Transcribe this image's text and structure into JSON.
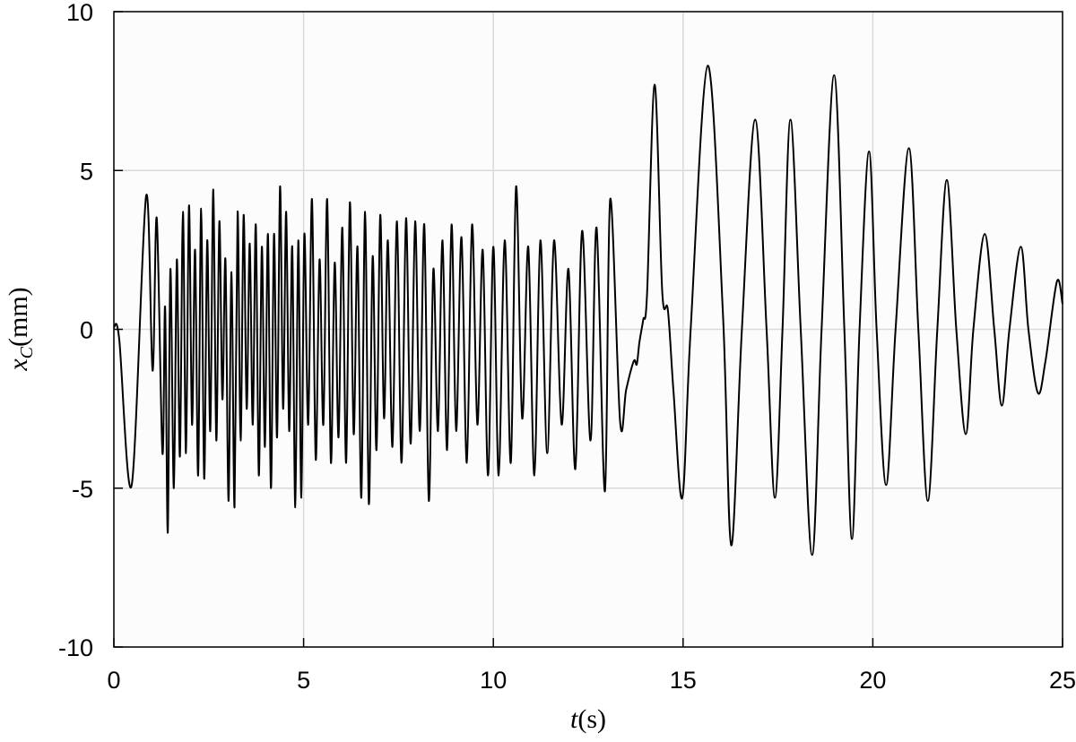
{
  "chart_data": {
    "type": "line",
    "xlabel": {
      "base": "t",
      "rest": "(s)"
    },
    "ylabel": {
      "base": "x",
      "subscript": "C",
      "rest": "(mm)"
    },
    "xlim": [
      0,
      25
    ],
    "xticks": [
      0,
      5,
      10,
      15,
      20,
      25
    ],
    "ylim": [
      -10,
      10
    ],
    "yticks": [
      -10,
      -5,
      0,
      5,
      10
    ],
    "grid": true,
    "series": [
      {
        "color": "#000000",
        "x": [
          0,
          0.14,
          0.47,
          0.85,
          1.02,
          1.13,
          1.28,
          1.35,
          1.42,
          1.49,
          1.58,
          1.66,
          1.74,
          1.82,
          1.9,
          1.98,
          2.06,
          2.14,
          2.22,
          2.3,
          2.38,
          2.46,
          2.54,
          2.62,
          2.7,
          2.78,
          2.86,
          2.94,
          3.02,
          3.1,
          3.18,
          3.26,
          3.34,
          3.42,
          3.5,
          3.58,
          3.66,
          3.74,
          3.82,
          3.9,
          3.98,
          4.06,
          4.14,
          4.22,
          4.3,
          4.38,
          4.46,
          4.54,
          4.62,
          4.7,
          4.78,
          4.86,
          4.94,
          5.02,
          5.12,
          5.22,
          5.32,
          5.42,
          5.52,
          5.62,
          5.72,
          5.82,
          5.92,
          6.02,
          6.12,
          6.22,
          6.32,
          6.42,
          6.52,
          6.62,
          6.72,
          6.82,
          6.92,
          7.02,
          7.12,
          7.22,
          7.34,
          7.46,
          7.58,
          7.7,
          7.82,
          7.94,
          8.06,
          8.18,
          8.3,
          8.42,
          8.54,
          8.66,
          8.78,
          8.9,
          9.02,
          9.16,
          9.3,
          9.44,
          9.58,
          9.72,
          9.86,
          10.0,
          10.14,
          10.3,
          10.46,
          10.6,
          10.76,
          10.92,
          11.08,
          11.24,
          11.42,
          11.6,
          11.8,
          11.98,
          12.16,
          12.34,
          12.56,
          12.72,
          12.94,
          13.08,
          13.34,
          13.5,
          13.7,
          13.78,
          13.85,
          13.95,
          14.05,
          14.25,
          14.45,
          14.6,
          14.75,
          14.98,
          15.2,
          15.65,
          16.05,
          16.27,
          16.55,
          16.9,
          17.2,
          17.42,
          17.62,
          17.83,
          18.1,
          18.4,
          18.65,
          18.98,
          19.25,
          19.45,
          19.65,
          19.9,
          20.1,
          20.35,
          20.6,
          20.95,
          21.2,
          21.45,
          21.7,
          21.95,
          22.2,
          22.45,
          22.65,
          22.95,
          23.2,
          23.4,
          23.6,
          23.9,
          24.1,
          24.35,
          24.55,
          24.85,
          25
        ],
        "values": [
          0.07,
          -0.3,
          -4.9,
          4.2,
          -1.3,
          3.5,
          -3.9,
          0.7,
          -6.4,
          1.9,
          -5.0,
          2.2,
          -4.0,
          3.7,
          -3.9,
          3.9,
          -3.0,
          2.5,
          -4.6,
          3.8,
          -4.7,
          2.8,
          -3.2,
          4.4,
          -3.5,
          3.4,
          -2.2,
          2.2,
          -5.4,
          1.8,
          -5.6,
          3.7,
          -3.5,
          3.6,
          -2.5,
          2.7,
          -3.0,
          3.3,
          -4.6,
          2.6,
          -3.7,
          3.0,
          -5.0,
          3.0,
          -3.4,
          4.5,
          -2.5,
          3.7,
          -3.2,
          2.6,
          -5.6,
          2.8,
          -5.3,
          3.0,
          -3.0,
          4.1,
          -4.1,
          2.2,
          -3.0,
          4.1,
          -4.2,
          2.1,
          -3.4,
          3.2,
          -4.2,
          4.0,
          -3.3,
          2.6,
          -5.3,
          3.7,
          -5.5,
          2.3,
          -3.8,
          3.6,
          -2.8,
          2.8,
          -3.7,
          3.4,
          -4.2,
          3.5,
          -3.6,
          3.4,
          -3.2,
          3.3,
          -5.4,
          1.9,
          -3.2,
          2.8,
          -3.8,
          3.3,
          -3.2,
          2.9,
          -4.2,
          3.3,
          -3.0,
          2.5,
          -4.6,
          2.6,
          -4.6,
          2.8,
          -4.2,
          4.5,
          -2.8,
          2.6,
          -4.6,
          2.8,
          -3.9,
          2.8,
          -3.0,
          1.9,
          -4.4,
          3.1,
          -3.5,
          3.2,
          -5.1,
          4.1,
          -2.9,
          -1.9,
          -1.0,
          -1.1,
          -0.4,
          0.3,
          1.1,
          7.7,
          1.2,
          0.6,
          -2.0,
          -5.3,
          0.0,
          8.3,
          0.5,
          -6.8,
          0.0,
          6.6,
          0.0,
          -5.3,
          0.0,
          6.6,
          0.0,
          -7.1,
          0.0,
          8.0,
          0.0,
          -6.6,
          0.0,
          5.6,
          0.0,
          -4.9,
          0.0,
          5.7,
          0.0,
          -5.4,
          0.0,
          4.7,
          0.0,
          -3.3,
          0.0,
          3.0,
          0.0,
          -2.4,
          0.0,
          2.6,
          0.0,
          -2.0,
          -1.0,
          1.5,
          0.8
        ]
      }
    ]
  }
}
